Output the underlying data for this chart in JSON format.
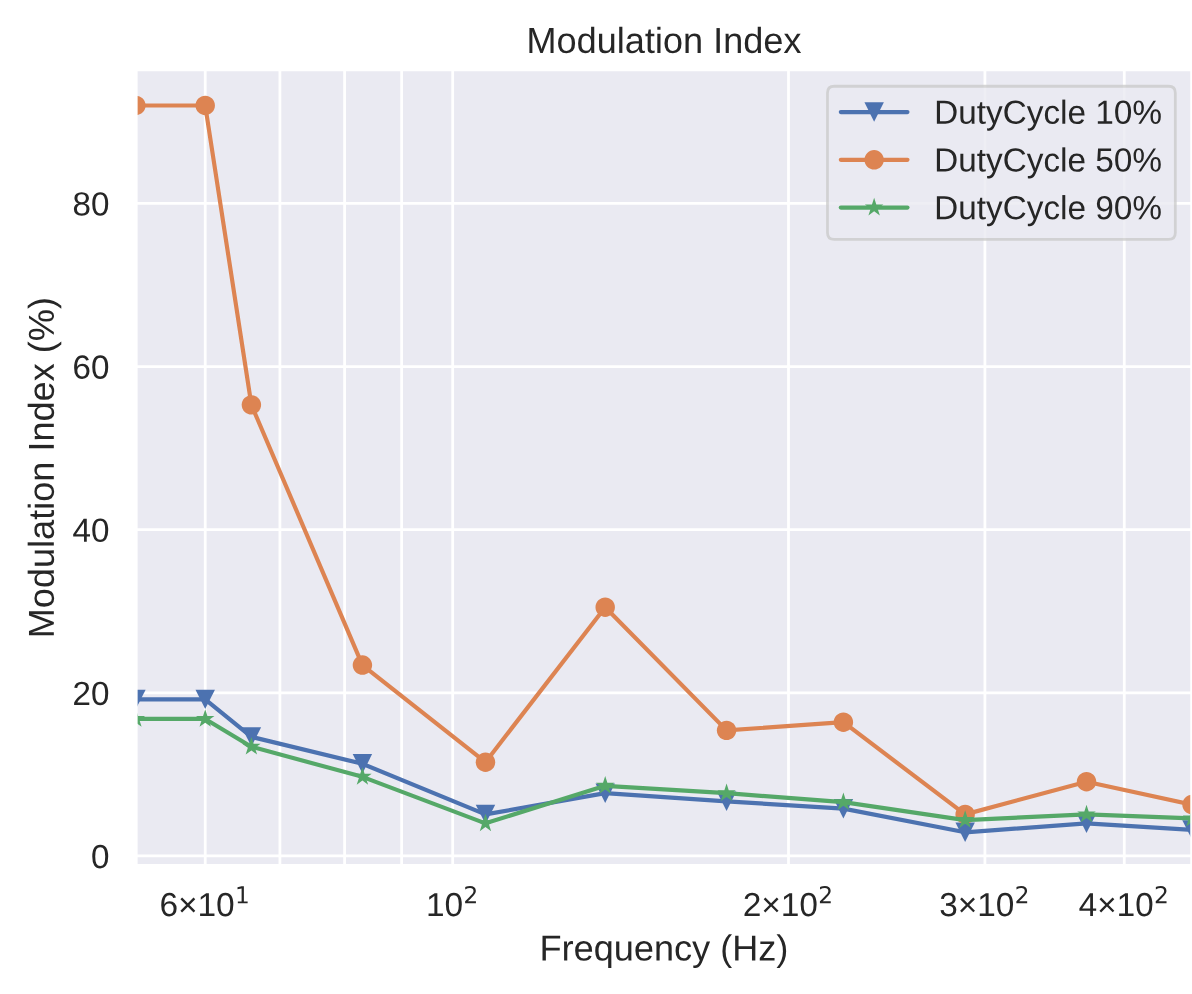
{
  "chart_data": {
    "type": "line",
    "title": "Modulation Index",
    "xlabel": "Frequency (Hz)",
    "ylabel": "Modulation Index (%)",
    "x": [
      52,
      60,
      66,
      83,
      107,
      137,
      176,
      224,
      288,
      370,
      460
    ],
    "series": [
      {
        "name": "DutyCycle 10%",
        "color": "#4c72b0",
        "marker": "triangle",
        "values": [
          19.2,
          19.2,
          14.6,
          11.3,
          5.1,
          7.7,
          6.7,
          5.8,
          2.9,
          4.0,
          3.2
        ]
      },
      {
        "name": "DutyCycle 50%",
        "color": "#dd8452",
        "marker": "circle",
        "values": [
          92,
          92,
          55.3,
          23.4,
          11.5,
          30.5,
          15.4,
          16.4,
          5.1,
          9.1,
          6.3
        ]
      },
      {
        "name": "DutyCycle 90%",
        "color": "#55a868",
        "marker": "star",
        "values": [
          16.8,
          16.8,
          13.4,
          9.7,
          4.0,
          8.6,
          7.7,
          6.6,
          4.4,
          5.1,
          4.6
        ]
      }
    ],
    "log": "x",
    "xlim": [
      52,
      460
    ],
    "xticks": [
      {
        "value": 60,
        "label": "6×10$^{1}$"
      },
      {
        "value": 70,
        "label": null
      },
      {
        "value": 80,
        "label": null
      },
      {
        "value": 90,
        "label": null
      },
      {
        "value": 100,
        "label": "10$^{2}$"
      },
      {
        "value": 200,
        "label": "2×10$^{2}$"
      },
      {
        "value": 300,
        "label": "3×10$^{2}$"
      },
      {
        "value": 400,
        "label": "4×10$^{2}$"
      }
    ],
    "ylim": [
      -1.2,
      96.4
    ],
    "yticks": [
      0,
      20,
      40,
      60,
      80
    ],
    "grid": true,
    "legend": "top right",
    "line_style": "solid"
  }
}
